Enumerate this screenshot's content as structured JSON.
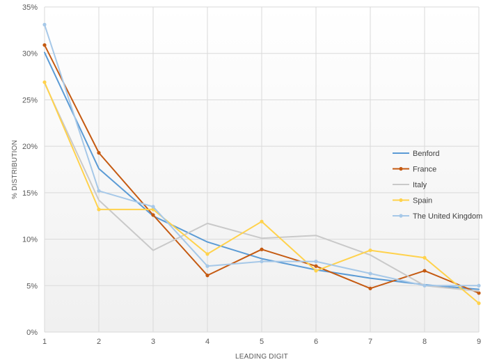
{
  "chart_data": {
    "type": "line",
    "title": "",
    "xlabel": "LEADING DIGIT",
    "ylabel": "% DISTRIBUTION",
    "x": [
      1,
      2,
      3,
      4,
      5,
      6,
      7,
      8,
      9
    ],
    "ylim": [
      0,
      35
    ],
    "yticks": [
      0,
      5,
      10,
      15,
      20,
      25,
      30,
      35
    ],
    "ytick_suffix": "%",
    "grid": "horizontal",
    "legend_position": "right",
    "series": [
      {
        "name": "Benford",
        "color": "#5b9bd5",
        "markers": false,
        "values": [
          30.1,
          17.6,
          12.5,
          9.7,
          7.9,
          6.7,
          5.8,
          5.1,
          4.6
        ]
      },
      {
        "name": "France",
        "color": "#c55a11",
        "markers": true,
        "values": [
          30.9,
          19.3,
          12.6,
          6.1,
          8.9,
          7.1,
          4.7,
          6.6,
          4.2
        ]
      },
      {
        "name": "Italy",
        "color": "#c9c9c9",
        "markers": false,
        "values": [
          26.8,
          14.2,
          8.8,
          11.7,
          10.1,
          10.4,
          8.3,
          5.0,
          4.4
        ]
      },
      {
        "name": "Spain",
        "color": "#ffd24c",
        "markers": true,
        "values": [
          26.9,
          13.2,
          13.2,
          8.4,
          11.9,
          6.6,
          8.8,
          8.0,
          3.1
        ]
      },
      {
        "name": "The United Kingdom",
        "color": "#a6c8e8",
        "markers": true,
        "values": [
          33.1,
          15.2,
          13.5,
          7.1,
          7.6,
          7.6,
          6.3,
          5.0,
          5.0
        ]
      }
    ]
  }
}
